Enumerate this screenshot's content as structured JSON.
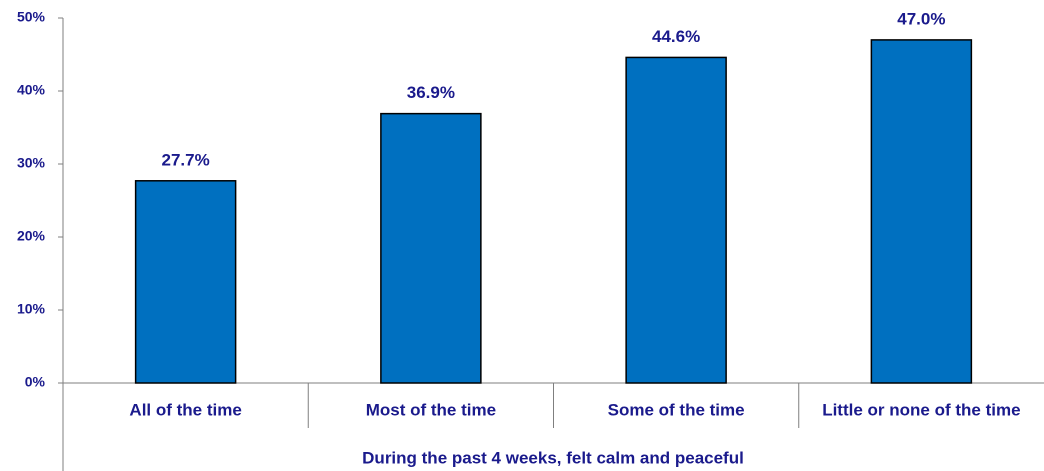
{
  "chart_data": {
    "type": "bar",
    "x_label": "During the past 4 weeks, felt calm and peaceful",
    "categories": [
      "All of the time",
      "Most of the time",
      "Some of the time",
      "Little or none of the time"
    ],
    "values": [
      27.7,
      36.9,
      44.6,
      47.0
    ],
    "value_labels": [
      "27.7%",
      "36.9%",
      "44.6%",
      "47.0%"
    ],
    "color": "#0070c0",
    "ylim": [
      0,
      50
    ],
    "yticks": [
      {
        "value": 0,
        "label": "0%"
      },
      {
        "value": 10,
        "label": "10%"
      },
      {
        "value": 20,
        "label": "20%"
      },
      {
        "value": 30,
        "label": "30%"
      },
      {
        "value": 40,
        "label": "40%"
      },
      {
        "value": 50,
        "label": "50%"
      }
    ],
    "grid": false
  }
}
